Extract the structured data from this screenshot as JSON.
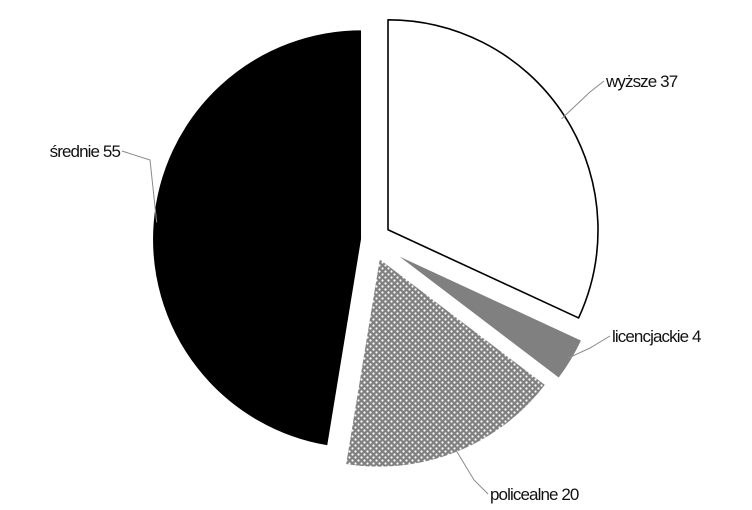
{
  "chart_data": {
    "type": "pie",
    "title": "",
    "slices": [
      {
        "label": "wyższe",
        "value": 37,
        "display": "wyższe 37",
        "fill": "#ffffff",
        "pattern": "none",
        "stroke": "#000000"
      },
      {
        "label": "licencjackie",
        "value": 4,
        "display": "licencjackie 4",
        "fill": "#808080",
        "pattern": "none",
        "stroke": "#ffffff"
      },
      {
        "label": "policealne",
        "value": 20,
        "display": "policealne 20",
        "fill": "#808080",
        "pattern": "white-dots",
        "stroke": "#ffffff"
      },
      {
        "label": "średnie",
        "value": 55,
        "display": "średnie 55",
        "fill": "#000000",
        "pattern": "none",
        "stroke": "#ffffff"
      }
    ],
    "start_angle": "12 o'clock",
    "direction": "clockwise",
    "exploded": true,
    "legend": "none",
    "data_labels": "outside with leader lines"
  }
}
